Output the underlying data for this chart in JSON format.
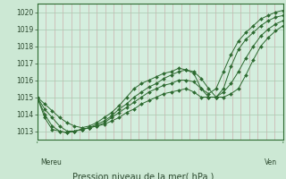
{
  "background_color": "#cce8d4",
  "plot_bg_color": "#d4eede",
  "grid_color_h": "#a8c8b0",
  "grid_color_v": "#c8a0a0",
  "line_color": "#2d6a30",
  "title": "Pression niveau de la mer( hPa )",
  "xlabel_left": "Mereu",
  "xlabel_right": "Ven",
  "ylim": [
    1012.5,
    1020.5
  ],
  "yticks": [
    1013,
    1014,
    1015,
    1016,
    1017,
    1018,
    1019,
    1020
  ],
  "n_vgrid": 30,
  "series": [
    [
      1015.0,
      1014.6,
      1014.2,
      1013.8,
      1013.5,
      1013.3,
      1013.2,
      1013.3,
      1013.5,
      1013.8,
      1014.1,
      1014.5,
      1015.0,
      1015.5,
      1015.8,
      1016.0,
      1016.2,
      1016.4,
      1016.5,
      1016.7,
      1016.6,
      1016.4,
      1015.5,
      1015.2,
      1015.5,
      1016.5,
      1017.5,
      1018.3,
      1018.8,
      1019.2,
      1019.6,
      1019.8,
      1020.0,
      1020.1
    ],
    [
      1015.0,
      1014.3,
      1013.8,
      1013.3,
      1013.0,
      1013.0,
      1013.1,
      1013.2,
      1013.4,
      1013.6,
      1013.9,
      1014.3,
      1014.6,
      1015.0,
      1015.3,
      1015.6,
      1015.8,
      1016.1,
      1016.3,
      1016.5,
      1016.6,
      1016.5,
      1016.1,
      1015.5,
      1015.0,
      1015.5,
      1016.8,
      1017.8,
      1018.4,
      1018.8,
      1019.2,
      1019.5,
      1019.7,
      1019.8
    ],
    [
      1015.0,
      1014.0,
      1013.3,
      1013.0,
      1012.9,
      1013.0,
      1013.1,
      1013.2,
      1013.3,
      1013.5,
      1013.8,
      1014.1,
      1014.4,
      1014.7,
      1015.0,
      1015.3,
      1015.5,
      1015.7,
      1015.8,
      1016.0,
      1016.0,
      1015.9,
      1015.5,
      1015.0,
      1015.0,
      1015.3,
      1015.8,
      1016.5,
      1017.3,
      1018.0,
      1018.6,
      1019.0,
      1019.3,
      1019.5
    ],
    [
      1015.0,
      1013.8,
      1013.1,
      1013.0,
      1012.9,
      1013.0,
      1013.1,
      1013.2,
      1013.3,
      1013.4,
      1013.6,
      1013.8,
      1014.1,
      1014.3,
      1014.6,
      1014.8,
      1015.0,
      1015.2,
      1015.3,
      1015.4,
      1015.5,
      1015.3,
      1015.0,
      1015.0,
      1015.0,
      1015.0,
      1015.2,
      1015.5,
      1016.3,
      1017.2,
      1018.0,
      1018.5,
      1018.9,
      1019.2
    ]
  ]
}
